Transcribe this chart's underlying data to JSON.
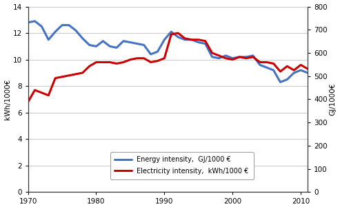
{
  "years": [
    1970,
    1971,
    1972,
    1973,
    1974,
    1975,
    1976,
    1977,
    1978,
    1979,
    1980,
    1981,
    1982,
    1983,
    1984,
    1985,
    1986,
    1987,
    1988,
    1989,
    1990,
    1991,
    1992,
    1993,
    1994,
    1995,
    1996,
    1997,
    1998,
    1999,
    2000,
    2001,
    2002,
    2003,
    2004,
    2005,
    2006,
    2007,
    2008,
    2009,
    2010,
    2011
  ],
  "energy_intensity": [
    12.8,
    12.9,
    12.5,
    11.5,
    12.1,
    12.6,
    12.6,
    12.2,
    11.6,
    11.1,
    11.0,
    11.4,
    11.0,
    10.9,
    11.4,
    11.3,
    11.2,
    11.1,
    10.4,
    10.6,
    11.5,
    12.1,
    11.7,
    11.5,
    11.5,
    11.3,
    11.2,
    10.2,
    10.1,
    10.3,
    10.1,
    10.2,
    10.2,
    10.3,
    9.6,
    9.4,
    9.2,
    8.3,
    8.5,
    9.0,
    9.2,
    9.0
  ],
  "electricity_intensity": [
    6.8,
    7.7,
    7.5,
    7.3,
    8.6,
    8.7,
    8.8,
    8.9,
    9.0,
    9.5,
    9.8,
    9.8,
    9.8,
    9.7,
    9.8,
    10.0,
    10.1,
    10.1,
    9.8,
    9.9,
    10.1,
    11.9,
    12.0,
    11.6,
    11.5,
    11.5,
    11.4,
    10.5,
    10.3,
    10.1,
    10.0,
    10.2,
    10.1,
    10.2,
    9.8,
    9.8,
    9.7,
    9.1,
    9.5,
    9.2,
    9.6,
    9.3
  ],
  "energy_color": "#4472C4",
  "electricity_color": "#CC0000",
  "left_ylim": [
    0,
    14
  ],
  "right_ylim": [
    0,
    800
  ],
  "left_yticks": [
    0,
    2,
    4,
    6,
    8,
    10,
    12,
    14
  ],
  "right_yticks": [
    0,
    100,
    200,
    300,
    400,
    500,
    600,
    700,
    800
  ],
  "xlim": [
    1970,
    2011
  ],
  "xticks": [
    1970,
    1980,
    1990,
    2000,
    2010
  ],
  "left_ylabel": "kWh/1000€",
  "right_ylabel": "GJ/1000€",
  "legend_energy": "Energy intensity,  GJ/1000 €",
  "legend_electricity": "Electricity intensity,  kWh/1000 €",
  "line_width": 2.2,
  "bg_color": "#ffffff",
  "grid_color": "#c0c0c0"
}
